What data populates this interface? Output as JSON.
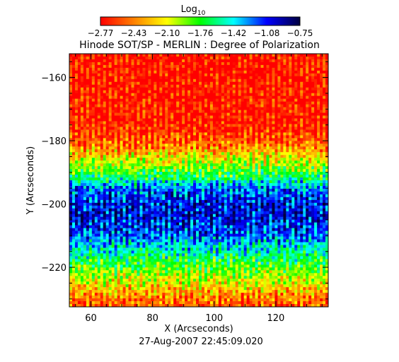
{
  "chart_data": {
    "type": "heatmap",
    "title": "Hinode SOT/SP - MERLIN : Degree of Polarization",
    "xlabel": "X (Arcseconds)",
    "ylabel": "Y (Arcseconds)",
    "xlim": [
      53,
      137
    ],
    "ylim": [
      -232.5,
      -152.5
    ],
    "x_ticks": [
      60,
      80,
      100,
      120
    ],
    "x_tick_labels": [
      "60",
      "80",
      "100",
      "120"
    ],
    "y_ticks": [
      -160,
      -180,
      -200,
      -220
    ],
    "y_tick_labels": [
      "-160",
      "-180",
      "-200",
      "-220"
    ],
    "colorbar": {
      "label_main": "Log",
      "label_sub": "10",
      "min": -2.77,
      "max": -0.75,
      "tick_labels": [
        "-2.77",
        "-2.43",
        "-2.10",
        "-1.76",
        "-1.42",
        "-1.08",
        "-0.75"
      ],
      "colors": [
        "#ff0000",
        "#ff8000",
        "#ffff00",
        "#00ff00",
        "#00ffff",
        "#0000ff",
        "#000040"
      ]
    },
    "profile": {
      "y": [
        -152.5,
        -175,
        -180,
        -184,
        -188,
        -192,
        -195,
        -200,
        -205,
        -210,
        -214,
        -218,
        -222,
        -226,
        -230,
        -232.5
      ],
      "log_dop": [
        -2.77,
        -2.72,
        -2.55,
        -2.25,
        -1.95,
        -1.6,
        -1.25,
        -1.05,
        -1.05,
        -1.2,
        -1.45,
        -1.7,
        -1.95,
        -2.2,
        -2.45,
        -2.55
      ]
    },
    "timestamp": "27-Aug-2007 22:45:09.020"
  }
}
